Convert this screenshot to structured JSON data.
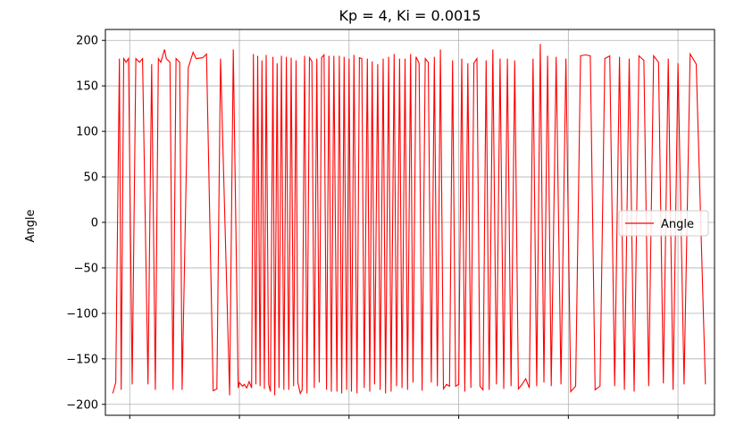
{
  "chart_data": {
    "type": "line",
    "title": "Kp = 4, Ki = 0.0015",
    "xlabel": "",
    "ylabel": "Angle",
    "ylim": [
      -212,
      212
    ],
    "xlim": [
      0,
      1
    ],
    "yticks": [
      200,
      150,
      100,
      50,
      0,
      -50,
      -100,
      -150,
      -200
    ],
    "ytick_labels": [
      "200",
      "150",
      "100",
      "50",
      "0",
      "−50",
      "−100",
      "−150",
      "−200"
    ],
    "xticks": [
      0.04,
      0.22,
      0.4,
      0.58,
      0.76,
      0.94
    ],
    "grid": true,
    "legend": {
      "position": "center-right",
      "entries": [
        "Angle"
      ]
    },
    "series": [
      {
        "name": "Angle",
        "color": "#ff0000",
        "x": [
          0.012,
          0.017,
          0.023,
          0.026,
          0.03,
          0.034,
          0.038,
          0.044,
          0.05,
          0.056,
          0.061,
          0.07,
          0.076,
          0.082,
          0.087,
          0.091,
          0.097,
          0.1,
          0.106,
          0.111,
          0.116,
          0.122,
          0.126,
          0.136,
          0.144,
          0.149,
          0.16,
          0.166,
          0.177,
          0.183,
          0.189,
          0.204,
          0.21,
          0.218,
          0.22,
          0.225,
          0.228,
          0.232,
          0.236,
          0.24,
          0.243,
          0.247,
          0.25,
          0.254,
          0.257,
          0.261,
          0.264,
          0.268,
          0.271,
          0.275,
          0.278,
          0.282,
          0.285,
          0.289,
          0.293,
          0.297,
          0.301,
          0.305,
          0.309,
          0.313,
          0.316,
          0.32,
          0.323,
          0.327,
          0.331,
          0.335,
          0.339,
          0.343,
          0.347,
          0.351,
          0.355,
          0.359,
          0.363,
          0.367,
          0.371,
          0.375,
          0.38,
          0.384,
          0.388,
          0.392,
          0.396,
          0.4,
          0.404,
          0.408,
          0.413,
          0.417,
          0.421,
          0.425,
          0.43,
          0.434,
          0.438,
          0.442,
          0.447,
          0.451,
          0.456,
          0.46,
          0.465,
          0.469,
          0.474,
          0.478,
          0.483,
          0.487,
          0.492,
          0.496,
          0.501,
          0.505,
          0.51,
          0.515,
          0.52,
          0.525,
          0.53,
          0.535,
          0.54,
          0.545,
          0.55,
          0.555,
          0.56,
          0.565,
          0.57,
          0.575,
          0.58,
          0.585,
          0.59,
          0.595,
          0.6,
          0.605,
          0.61,
          0.615,
          0.62,
          0.625,
          0.63,
          0.636,
          0.642,
          0.648,
          0.654,
          0.66,
          0.666,
          0.672,
          0.678,
          0.684,
          0.69,
          0.696,
          0.702,
          0.708,
          0.714,
          0.72,
          0.726,
          0.732,
          0.74,
          0.748,
          0.756,
          0.764,
          0.772,
          0.78,
          0.788,
          0.796,
          0.804,
          0.812,
          0.82,
          0.828,
          0.836,
          0.844,
          0.852,
          0.86,
          0.868,
          0.876,
          0.884,
          0.892,
          0.9,
          0.908,
          0.916,
          0.924,
          0.932,
          0.94,
          0.95,
          0.96,
          0.97,
          0.985
        ],
        "values": [
          -188,
          -176,
          180,
          -184,
          180,
          176,
          180,
          -178,
          180,
          176,
          180,
          -178,
          174,
          -184,
          180,
          176,
          190,
          180,
          176,
          -184,
          180,
          176,
          -184,
          170,
          187,
          180,
          181,
          185,
          -185,
          -183,
          180,
          -190,
          190,
          -182,
          -176,
          -180,
          -178,
          -182,
          -175,
          -182,
          185,
          -178,
          183,
          -180,
          178,
          -183,
          184,
          -178,
          -186,
          182,
          -190,
          175,
          -182,
          183,
          -184,
          182,
          -184,
          181,
          -180,
          178,
          -176,
          -188,
          -184,
          183,
          -188,
          181,
          177,
          -182,
          180,
          -176,
          181,
          184,
          -184,
          183,
          -186,
          183,
          -186,
          183,
          -188,
          182,
          -184,
          180,
          -186,
          184,
          -188,
          181,
          180,
          -182,
          180,
          -186,
          177,
          -178,
          174,
          -184,
          180,
          -188,
          182,
          -186,
          185,
          -180,
          180,
          -182,
          180,
          -184,
          185,
          -176,
          182,
          175,
          -185,
          180,
          176,
          -176,
          182,
          -180,
          190,
          -183,
          -178,
          -180,
          178,
          -180,
          -178,
          180,
          -186,
          175,
          -182,
          175,
          180,
          -180,
          -184,
          178,
          -184,
          190,
          -178,
          180,
          -183,
          180,
          -180,
          178,
          -183,
          -178,
          -172,
          -182,
          180,
          -180,
          196,
          -176,
          183,
          -180,
          182,
          -178,
          180,
          -186,
          -180,
          183,
          184,
          183,
          -184,
          -180,
          180,
          183,
          -180,
          182,
          -184,
          180,
          -186,
          183,
          178,
          -180,
          183,
          176,
          -177,
          180,
          -184,
          175,
          -178,
          185,
          174,
          -178
        ]
      }
    ]
  }
}
